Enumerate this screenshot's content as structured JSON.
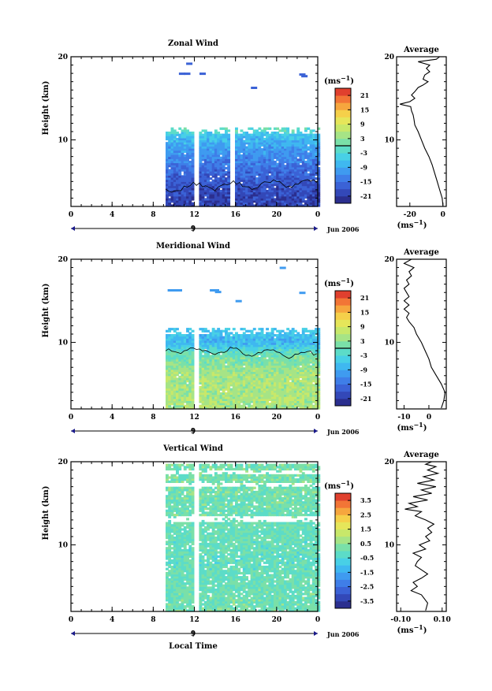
{
  "units_label": "(ms",
  "units_exp": "−1",
  "units_close": ")",
  "date_label": "Jun 2006",
  "day_label": "9",
  "local_time_label": "Local Time",
  "average_title": "Average",
  "panels": [
    {
      "id": "zonal",
      "chart_data": {
        "type": "heatmap",
        "title": "Zonal Wind",
        "xlabel": "",
        "ylabel": "Height (km)",
        "xlim": [
          0,
          24
        ],
        "ylim": [
          2,
          20
        ],
        "x_ticks": [
          "0",
          "4",
          "8",
          "12",
          "16",
          "20",
          "0"
        ],
        "y_ticks": [
          "10",
          "20"
        ],
        "data_start_hour": 9.2,
        "gaps_hours": [
          [
            11.8,
            12.3
          ],
          [
            15.3,
            15.8
          ]
        ],
        "colorbar_ticks": [
          "21",
          "15",
          "9",
          "3",
          "-3",
          "-9",
          "-15",
          "-21"
        ],
        "colorbar_range": [
          -24,
          24
        ],
        "zero_contour": true,
        "profile_summary": [
          {
            "height": 3,
            "value": -20
          },
          {
            "height": 6,
            "value": -16
          },
          {
            "height": 9,
            "value": -10
          },
          {
            "height": 10.5,
            "value": -6
          },
          {
            "height": 11,
            "value": -2
          },
          {
            "height": 12,
            "value": 3
          }
        ],
        "average": {
          "x_ticks": [
            "-20",
            "0"
          ],
          "xlim": [
            -28,
            2
          ],
          "y_ticks": [
            "10",
            "20"
          ],
          "ylim": [
            2,
            20
          ],
          "profile": [
            [
              2.1,
              0
            ],
            [
              3,
              -0.5
            ],
            [
              4,
              -2
            ],
            [
              5,
              -3.5
            ],
            [
              6,
              -5
            ],
            [
              7,
              -6.5
            ],
            [
              8,
              -8.5
            ],
            [
              9,
              -11
            ],
            [
              10,
              -13
            ],
            [
              11,
              -15
            ],
            [
              11.8,
              -17
            ],
            [
              12.5,
              -17.5
            ],
            [
              13,
              -18
            ],
            [
              13.5,
              -19
            ],
            [
              14,
              -19.5
            ],
            [
              14.3,
              -26
            ],
            [
              14.6,
              -20
            ],
            [
              15,
              -17
            ],
            [
              15.4,
              -19
            ],
            [
              15.8,
              -17
            ],
            [
              16.3,
              -15
            ],
            [
              16.6,
              -12
            ],
            [
              17,
              -9
            ],
            [
              17.3,
              -12
            ],
            [
              17.8,
              -11
            ],
            [
              18.2,
              -8
            ],
            [
              18.6,
              -10
            ],
            [
              19,
              -8
            ],
            [
              19.4,
              -15
            ],
            [
              19.7,
              -4
            ],
            [
              20,
              -2
            ]
          ]
        }
      }
    },
    {
      "id": "meridional",
      "chart_data": {
        "type": "heatmap",
        "title": "Meridional Wind",
        "xlabel": "",
        "ylabel": "Height (km)",
        "xlim": [
          0,
          24
        ],
        "ylim": [
          2,
          20
        ],
        "x_ticks": [
          "0",
          "4",
          "8",
          "12",
          "16",
          "20",
          "0"
        ],
        "y_ticks": [
          "10",
          "20"
        ],
        "data_start_hour": 9.2,
        "gaps_hours": [
          [
            11.8,
            12.3
          ]
        ],
        "colorbar_ticks": [
          "21",
          "15",
          "9",
          "3",
          "-3",
          "-9",
          "-15",
          "-21"
        ],
        "colorbar_range": [
          -24,
          24
        ],
        "zero_contour": true,
        "profile_summary": [
          {
            "height": 3,
            "value": 5
          },
          {
            "height": 6,
            "value": 5
          },
          {
            "height": 8.5,
            "value": 0
          },
          {
            "height": 10,
            "value": -8
          },
          {
            "height": 11,
            "value": -6
          }
        ],
        "average": {
          "x_ticks": [
            "-10",
            "0"
          ],
          "xlim": [
            -13,
            7
          ],
          "y_ticks": [
            "10",
            "20"
          ],
          "ylim": [
            2,
            20
          ],
          "profile": [
            [
              2.1,
              5
            ],
            [
              3,
              6
            ],
            [
              4,
              6.5
            ],
            [
              5,
              5
            ],
            [
              6,
              3
            ],
            [
              7,
              1
            ],
            [
              8,
              0
            ],
            [
              9,
              -1.5
            ],
            [
              10,
              -3
            ],
            [
              11,
              -5
            ],
            [
              11.8,
              -6
            ],
            [
              12.5,
              -8
            ],
            [
              13,
              -9
            ],
            [
              13.5,
              -8
            ],
            [
              14,
              -10
            ],
            [
              14.5,
              -8
            ],
            [
              15,
              -10
            ],
            [
              15.5,
              -8
            ],
            [
              16,
              -9
            ],
            [
              16.5,
              -10
            ],
            [
              17,
              -8
            ],
            [
              17.5,
              -9
            ],
            [
              18,
              -7
            ],
            [
              18.5,
              -8
            ],
            [
              19,
              -6
            ],
            [
              19.5,
              -10
            ],
            [
              20,
              -7
            ]
          ]
        }
      }
    },
    {
      "id": "vertical",
      "chart_data": {
        "type": "heatmap",
        "title": "Vertical Wind",
        "xlabel": "",
        "ylabel": "Height (km)",
        "xlim": [
          0,
          24
        ],
        "ylim": [
          2,
          20
        ],
        "x_ticks": [
          "0",
          "4",
          "8",
          "12",
          "16",
          "20",
          "0"
        ],
        "y_ticks": [
          "10",
          "20"
        ],
        "data_start_hour": 9.2,
        "gaps_hours": [
          [
            11.8,
            12.3
          ]
        ],
        "colorbar_ticks": [
          "3.5",
          "2.5",
          "1.5",
          "0.5",
          "-0.5",
          "-1.5",
          "-2.5",
          "-3.5"
        ],
        "colorbar_range": [
          -4,
          4
        ],
        "zero_contour": false,
        "profile_summary": [
          {
            "height": 3,
            "value": 0.1
          },
          {
            "height": 8,
            "value": -0.1
          },
          {
            "height": 15,
            "value": 0.1
          },
          {
            "height": 19,
            "value": 0.2
          }
        ],
        "average": {
          "x_ticks": [
            "-0.10",
            "0.10"
          ],
          "xlim": [
            -0.12,
            0.12
          ],
          "y_ticks": [
            "10",
            "20"
          ],
          "ylim": [
            2,
            20
          ],
          "profile": [
            [
              2.1,
              0.02
            ],
            [
              3,
              0.03
            ],
            [
              4,
              0.0
            ],
            [
              4.5,
              -0.05
            ],
            [
              5,
              -0.02
            ],
            [
              5.5,
              -0.04
            ],
            [
              6,
              0.0
            ],
            [
              6.5,
              0.03
            ],
            [
              7,
              0.0
            ],
            [
              7.5,
              -0.03
            ],
            [
              8,
              -0.02
            ],
            [
              8.5,
              0.0
            ],
            [
              9,
              -0.04
            ],
            [
              9.5,
              0.02
            ],
            [
              10,
              -0.01
            ],
            [
              10.5,
              0.04
            ],
            [
              11,
              0.02
            ],
            [
              11.5,
              0.05
            ],
            [
              12,
              0.03
            ],
            [
              12.5,
              0.06
            ],
            [
              13,
              0.02
            ],
            [
              13.5,
              -0.03
            ],
            [
              14,
              0.0
            ],
            [
              14.3,
              -0.08
            ],
            [
              14.6,
              -0.02
            ],
            [
              15,
              -0.06
            ],
            [
              15.4,
              0.03
            ],
            [
              15.8,
              -0.04
            ],
            [
              16.2,
              0.05
            ],
            [
              16.6,
              0.0
            ],
            [
              17,
              0.07
            ],
            [
              17.4,
              -0.02
            ],
            [
              17.8,
              0.06
            ],
            [
              18.2,
              0.01
            ],
            [
              18.6,
              0.08
            ],
            [
              19,
              0.03
            ],
            [
              19.4,
              0.07
            ],
            [
              19.7,
              0.02
            ],
            [
              20,
              0.05
            ]
          ]
        }
      }
    }
  ]
}
